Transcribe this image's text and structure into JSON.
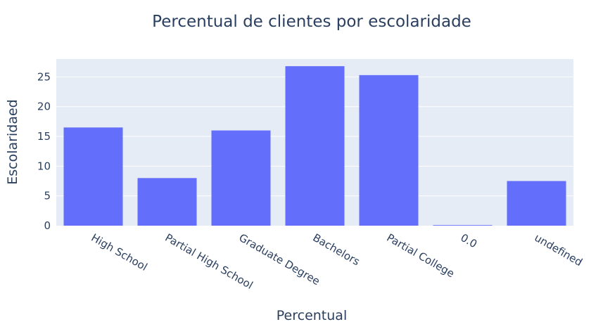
{
  "chart_data": {
    "type": "bar",
    "title": "Percentual de clientes por escolaridade",
    "xlabel": "Percentual",
    "ylabel": "Escolaridaed",
    "categories": [
      "High School",
      "Partial High School",
      "Graduate Degree",
      "Bachelors",
      "Partial College",
      "0.0",
      "undefined"
    ],
    "values": [
      16.5,
      8.0,
      16.0,
      26.8,
      25.3,
      0.1,
      7.5
    ],
    "ylim": [
      0,
      28
    ],
    "yticks": [
      0,
      5,
      10,
      15,
      20,
      25
    ],
    "grid": true,
    "colors": {
      "bar": "#636efa",
      "plot_bg": "#e5ecf6",
      "grid": "#ffffff",
      "text": "#2a3f5f"
    }
  }
}
